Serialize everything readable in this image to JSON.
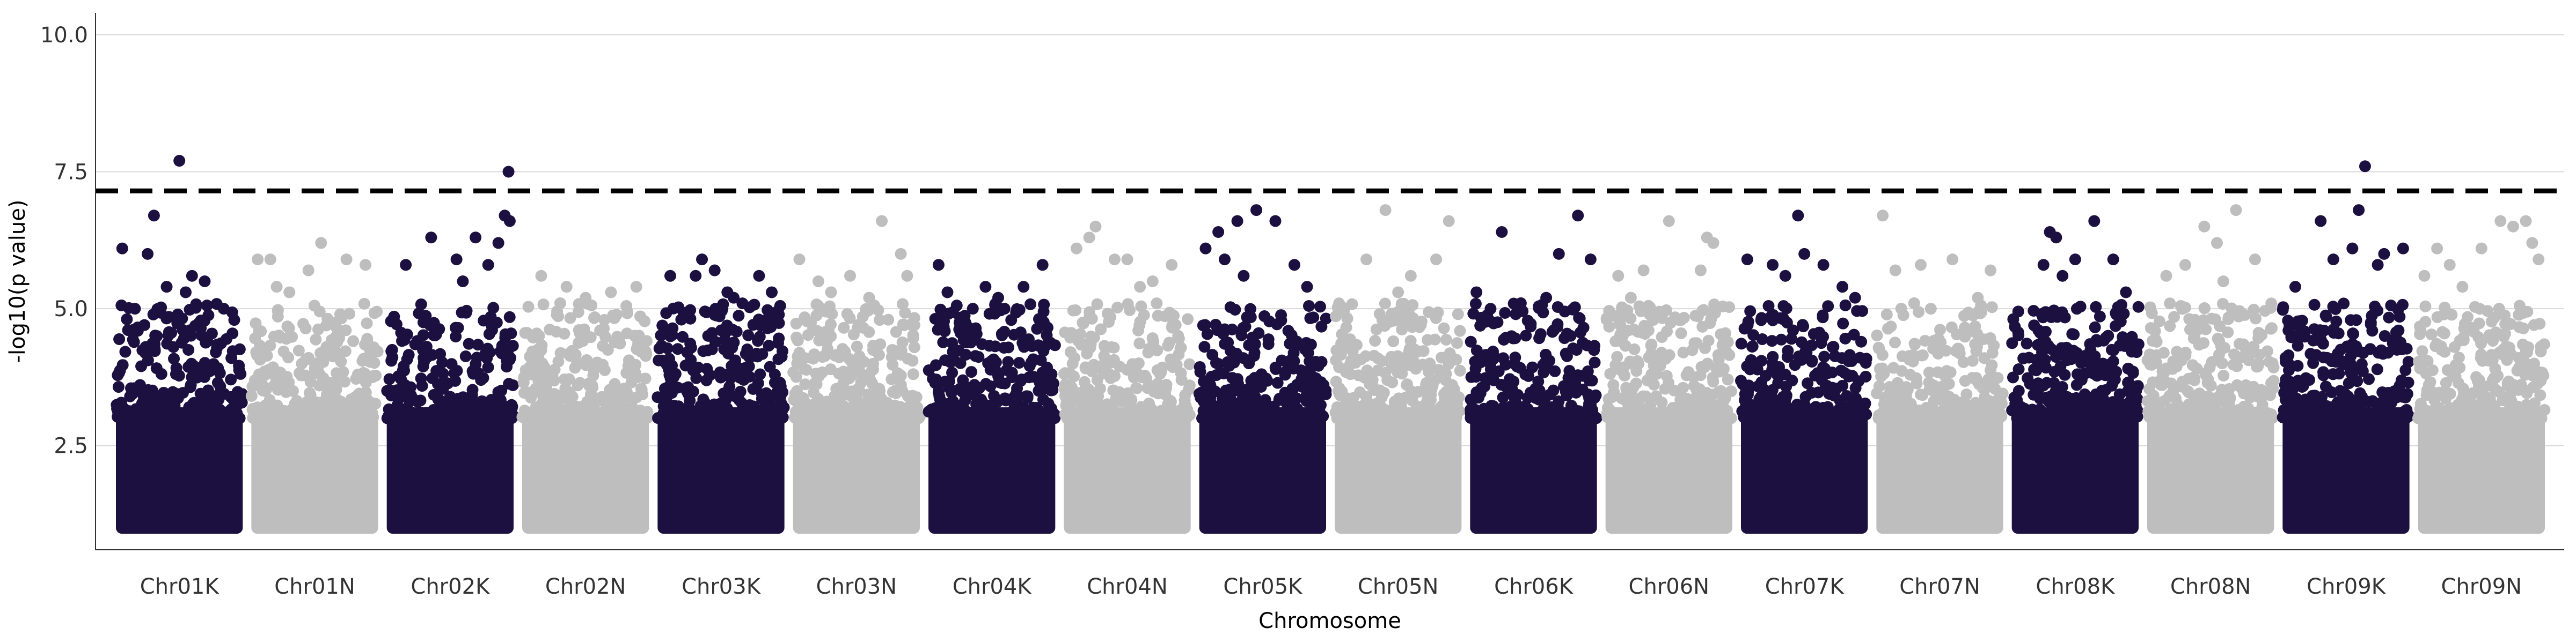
{
  "chart_data": {
    "type": "scatter",
    "subtype": "manhattan",
    "title": "",
    "xlabel": "Chromosome",
    "ylabel": "-log10(p value)",
    "ylim": [
      0.6,
      10.4
    ],
    "yticks": [
      "2.5",
      "5.0",
      "7.5",
      "10.0"
    ],
    "grid": "horizontal major only",
    "legend": "none",
    "threshold": {
      "value": 7.15,
      "style": "dashed",
      "color": "#000000"
    },
    "colors": {
      "odd": "#1c1040",
      "even": "#bebebe"
    },
    "chromosomes": [
      {
        "name": "Chr01K",
        "points": [
          [
            0.05,
            6.1
          ],
          [
            0.25,
            6.0
          ],
          [
            0.3,
            6.7
          ],
          [
            0.5,
            7.7
          ],
          [
            0.6,
            5.6
          ],
          [
            0.55,
            5.3
          ],
          [
            0.7,
            5.5
          ],
          [
            0.15,
            5.0
          ],
          [
            0.85,
            5.0
          ],
          [
            0.4,
            5.4
          ]
        ]
      },
      {
        "name": "Chr01N",
        "points": [
          [
            0.05,
            5.9
          ],
          [
            0.15,
            5.9
          ],
          [
            0.3,
            5.3
          ],
          [
            0.45,
            5.7
          ],
          [
            0.55,
            6.2
          ],
          [
            0.75,
            5.9
          ],
          [
            0.9,
            5.8
          ],
          [
            0.2,
            5.4
          ]
        ]
      },
      {
        "name": "Chr02K",
        "points": [
          [
            0.15,
            5.8
          ],
          [
            0.35,
            6.3
          ],
          [
            0.55,
            5.9
          ],
          [
            0.7,
            6.3
          ],
          [
            0.8,
            5.8
          ],
          [
            0.88,
            6.2
          ],
          [
            0.96,
            7.5
          ],
          [
            0.93,
            6.7
          ],
          [
            0.97,
            6.6
          ],
          [
            0.6,
            5.5
          ]
        ]
      },
      {
        "name": "Chr02N",
        "points": [
          [
            0.15,
            5.6
          ],
          [
            0.35,
            5.4
          ],
          [
            0.5,
            5.2
          ],
          [
            0.7,
            5.3
          ],
          [
            0.9,
            5.4
          ],
          [
            0.3,
            5.1
          ]
        ]
      },
      {
        "name": "Chr03K",
        "points": [
          [
            0.1,
            5.6
          ],
          [
            0.3,
            5.6
          ],
          [
            0.35,
            5.9
          ],
          [
            0.45,
            5.7
          ],
          [
            0.55,
            5.3
          ],
          [
            0.8,
            5.6
          ],
          [
            0.9,
            5.3
          ],
          [
            0.6,
            5.2
          ]
        ]
      },
      {
        "name": "Chr03N",
        "points": [
          [
            0.05,
            5.9
          ],
          [
            0.2,
            5.5
          ],
          [
            0.45,
            5.6
          ],
          [
            0.6,
            5.2
          ],
          [
            0.7,
            6.6
          ],
          [
            0.85,
            6.0
          ],
          [
            0.9,
            5.6
          ],
          [
            0.3,
            5.3
          ]
        ]
      },
      {
        "name": "Chr04K",
        "points": [
          [
            0.08,
            5.8
          ],
          [
            0.15,
            5.3
          ],
          [
            0.35,
            5.0
          ],
          [
            0.45,
            5.4
          ],
          [
            0.55,
            5.2
          ],
          [
            0.75,
            5.4
          ],
          [
            0.9,
            5.8
          ],
          [
            0.6,
            5.0
          ]
        ]
      },
      {
        "name": "Chr04N",
        "points": [
          [
            0.1,
            6.1
          ],
          [
            0.2,
            6.3
          ],
          [
            0.25,
            6.5
          ],
          [
            0.4,
            5.9
          ],
          [
            0.5,
            5.9
          ],
          [
            0.7,
            5.5
          ],
          [
            0.85,
            5.8
          ],
          [
            0.6,
            5.4
          ]
        ]
      },
      {
        "name": "Chr05K",
        "points": [
          [
            0.05,
            6.1
          ],
          [
            0.15,
            6.4
          ],
          [
            0.3,
            6.6
          ],
          [
            0.45,
            6.8
          ],
          [
            0.6,
            6.6
          ],
          [
            0.75,
            5.8
          ],
          [
            0.85,
            5.4
          ],
          [
            0.2,
            5.9
          ],
          [
            0.35,
            5.6
          ]
        ]
      },
      {
        "name": "Chr05N",
        "points": [
          [
            0.25,
            5.9
          ],
          [
            0.4,
            6.8
          ],
          [
            0.6,
            5.6
          ],
          [
            0.8,
            5.9
          ],
          [
            0.9,
            6.6
          ],
          [
            0.5,
            5.3
          ]
        ]
      },
      {
        "name": "Chr06K",
        "points": [
          [
            0.05,
            5.3
          ],
          [
            0.25,
            6.4
          ],
          [
            0.4,
            5.1
          ],
          [
            0.7,
            6.0
          ],
          [
            0.85,
            6.7
          ],
          [
            0.95,
            5.9
          ],
          [
            0.6,
            5.2
          ]
        ]
      },
      {
        "name": "Chr06N",
        "points": [
          [
            0.1,
            5.6
          ],
          [
            0.3,
            5.7
          ],
          [
            0.5,
            6.6
          ],
          [
            0.75,
            5.7
          ],
          [
            0.8,
            6.3
          ],
          [
            0.85,
            6.2
          ],
          [
            0.2,
            5.2
          ]
        ]
      },
      {
        "name": "Chr07K",
        "points": [
          [
            0.05,
            5.9
          ],
          [
            0.25,
            5.8
          ],
          [
            0.45,
            6.7
          ],
          [
            0.5,
            6.0
          ],
          [
            0.65,
            5.8
          ],
          [
            0.8,
            5.4
          ],
          [
            0.9,
            5.2
          ],
          [
            0.35,
            5.6
          ]
        ]
      },
      {
        "name": "Chr07N",
        "points": [
          [
            0.05,
            6.7
          ],
          [
            0.15,
            5.7
          ],
          [
            0.35,
            5.8
          ],
          [
            0.6,
            5.9
          ],
          [
            0.8,
            5.2
          ],
          [
            0.9,
            5.7
          ]
        ]
      },
      {
        "name": "Chr08K",
        "points": [
          [
            0.25,
            5.8
          ],
          [
            0.3,
            6.4
          ],
          [
            0.35,
            6.3
          ],
          [
            0.5,
            5.9
          ],
          [
            0.65,
            6.6
          ],
          [
            0.8,
            5.9
          ],
          [
            0.9,
            5.3
          ],
          [
            0.4,
            5.6
          ]
        ]
      },
      {
        "name": "Chr08N",
        "points": [
          [
            0.15,
            5.6
          ],
          [
            0.3,
            5.8
          ],
          [
            0.45,
            6.5
          ],
          [
            0.55,
            6.2
          ],
          [
            0.7,
            6.8
          ],
          [
            0.85,
            5.9
          ],
          [
            0.6,
            5.5
          ]
        ]
      },
      {
        "name": "Chr09K",
        "points": [
          [
            0.1,
            5.4
          ],
          [
            0.3,
            6.6
          ],
          [
            0.4,
            5.9
          ],
          [
            0.55,
            6.1
          ],
          [
            0.6,
            6.8
          ],
          [
            0.65,
            7.6
          ],
          [
            0.8,
            6.0
          ],
          [
            0.95,
            6.1
          ],
          [
            0.75,
            5.8
          ]
        ]
      },
      {
        "name": "Chr09N",
        "points": [
          [
            0.05,
            5.6
          ],
          [
            0.15,
            6.1
          ],
          [
            0.25,
            5.8
          ],
          [
            0.35,
            5.4
          ],
          [
            0.5,
            6.1
          ],
          [
            0.65,
            6.6
          ],
          [
            0.75,
            6.5
          ],
          [
            0.85,
            6.6
          ],
          [
            0.9,
            6.2
          ],
          [
            0.95,
            5.9
          ]
        ]
      }
    ]
  }
}
